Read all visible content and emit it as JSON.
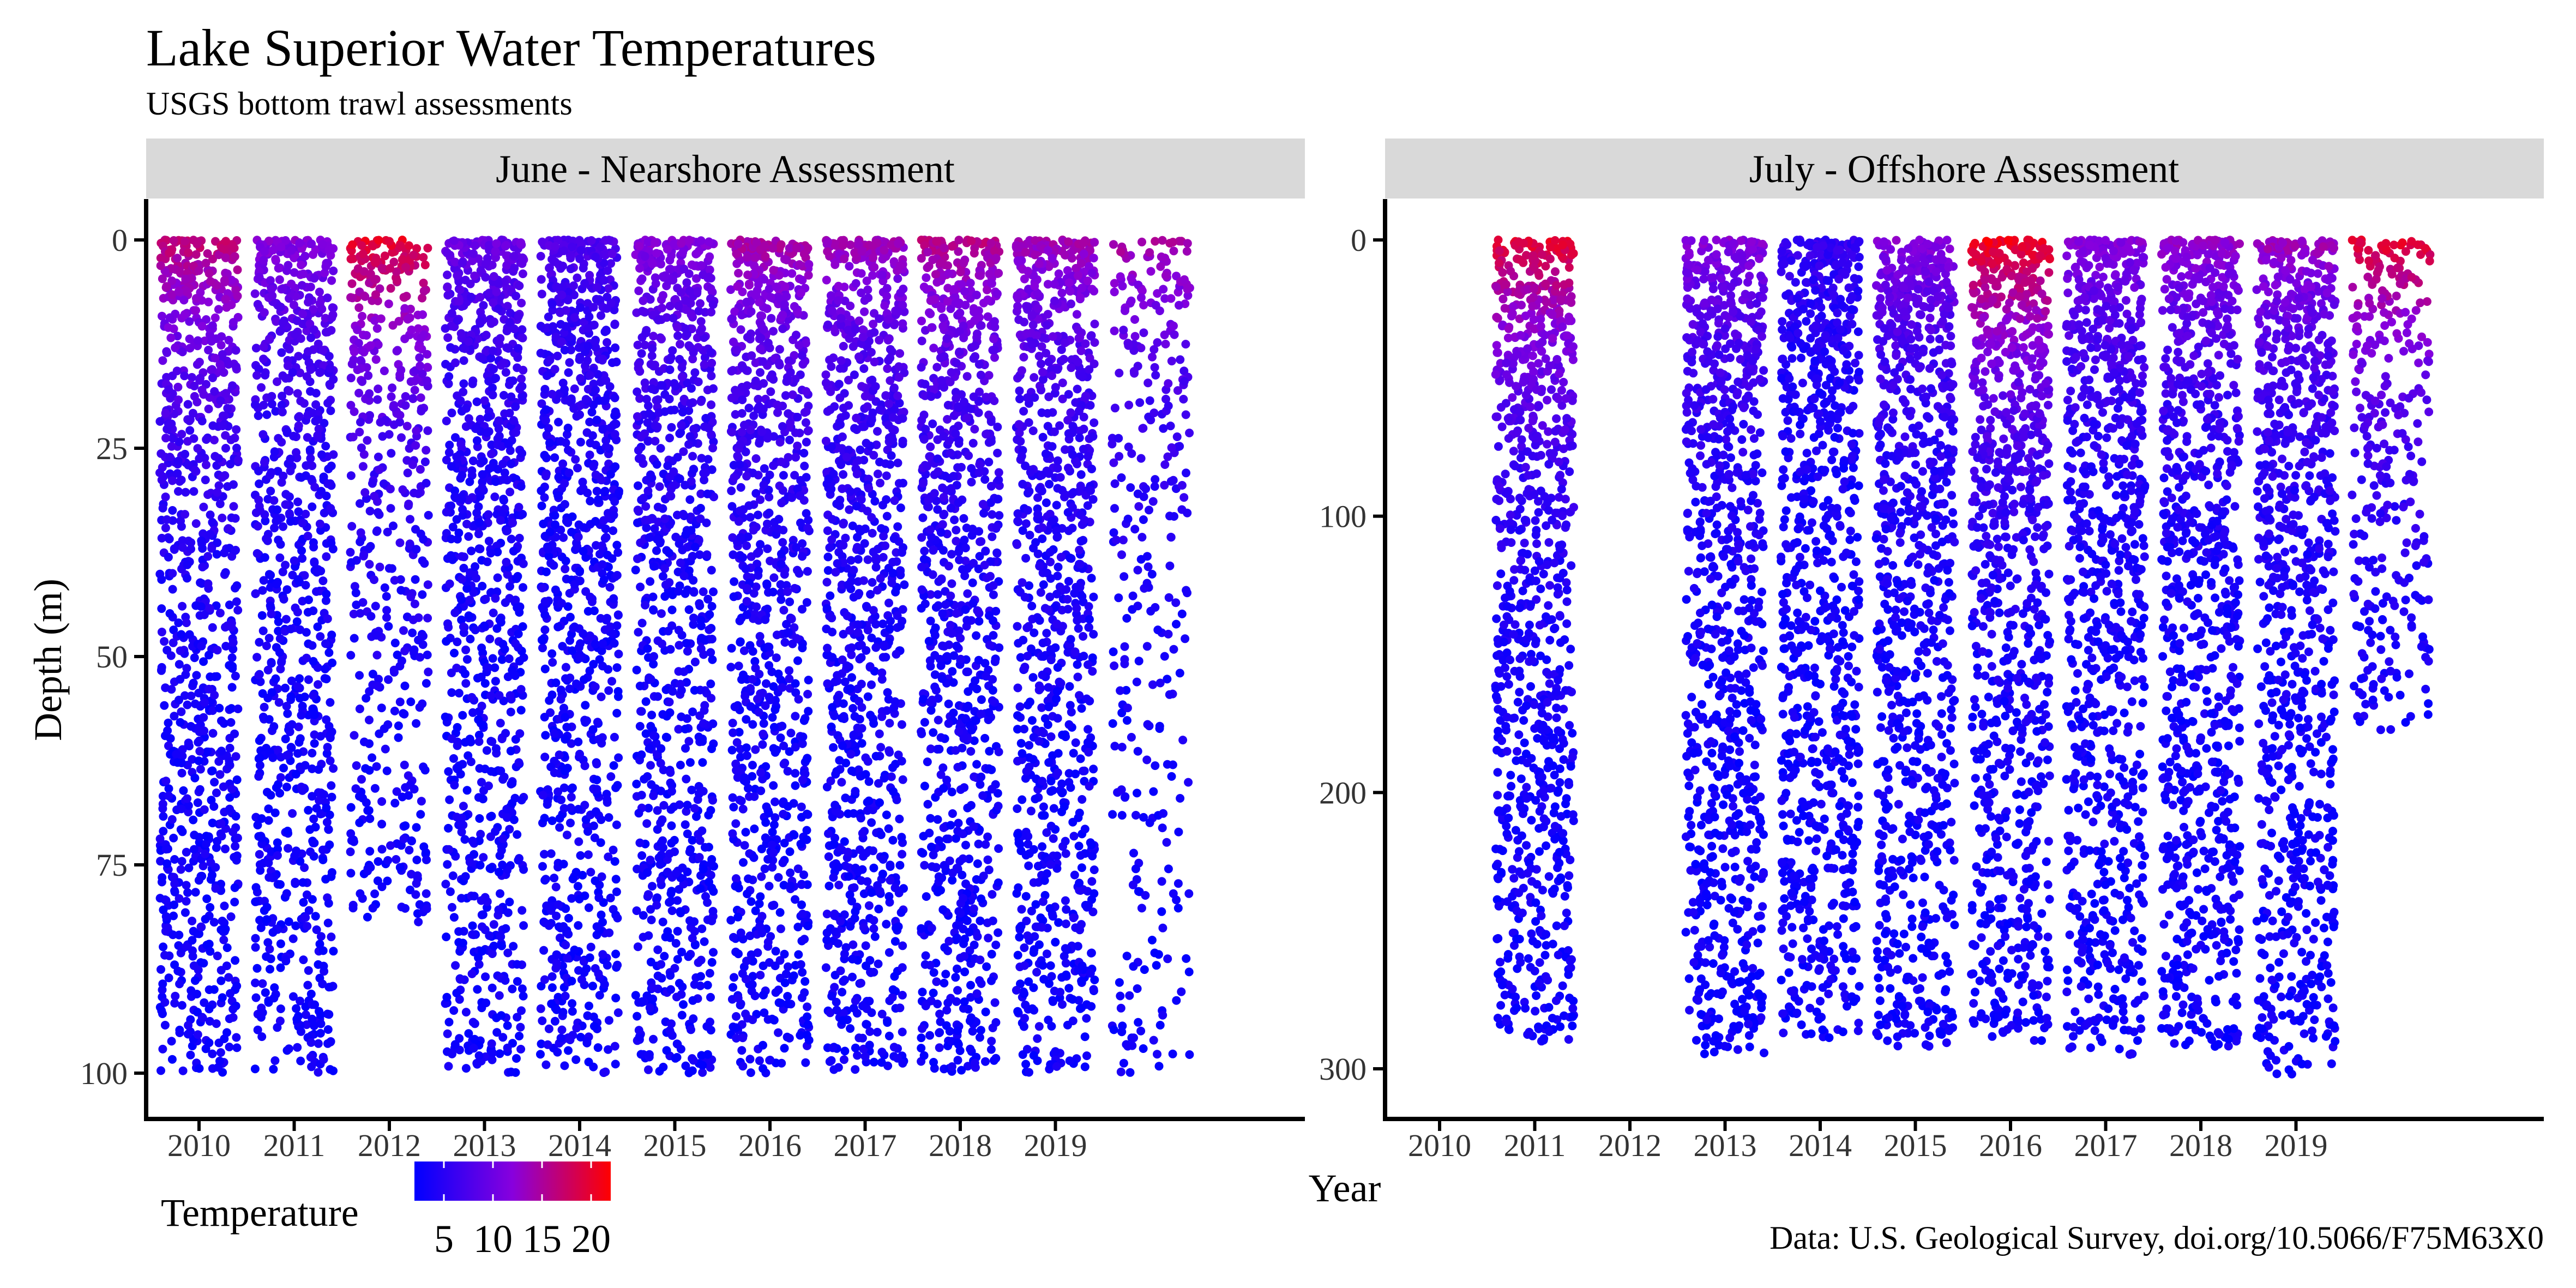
{
  "title": "Lake Superior Water Temperatures",
  "subtitle": "USGS bottom trawl assessments",
  "caption": "Data: U.S. Geological Survey, doi.org/10.5066/F75M63X0",
  "legend": {
    "title": "Temperature",
    "tick_labels": [
      "5",
      "10",
      "15",
      "20"
    ],
    "range": [
      2,
      22
    ],
    "low_color": "#0000ff",
    "mid_color": "#8800dd",
    "high_color": "#ff0000"
  },
  "chart_data": [
    {
      "type": "scatter",
      "panel_title": "June - Nearshore Assessment",
      "xlabel": "Year",
      "ylabel": "Depth (m)",
      "y_reversed": true,
      "ylim": [
        0,
        100
      ],
      "y_ticks": [
        0,
        25,
        50,
        75,
        100
      ],
      "x_tick_labels": [
        "2010",
        "2011",
        "2012",
        "2013",
        "2014",
        "2015",
        "2016",
        "2017",
        "2018",
        "2019"
      ],
      "grid": false,
      "series": [
        {
          "year": "2010",
          "depth_max": 100,
          "surface_temp": 17,
          "density": 1.0
        },
        {
          "year": "2011",
          "depth_max": 100,
          "surface_temp": 12,
          "density": 0.95
        },
        {
          "year": "2012",
          "depth_max": 82,
          "surface_temp": 20,
          "density": 0.55
        },
        {
          "year": "2013",
          "depth_max": 100,
          "surface_temp": 10,
          "density": 1.0
        },
        {
          "year": "2014",
          "depth_max": 100,
          "surface_temp": 8,
          "density": 1.0
        },
        {
          "year": "2015",
          "depth_max": 100,
          "surface_temp": 12,
          "density": 1.0
        },
        {
          "year": "2016",
          "depth_max": 100,
          "surface_temp": 15,
          "density": 1.0
        },
        {
          "year": "2017",
          "depth_max": 100,
          "surface_temp": 14,
          "density": 1.0
        },
        {
          "year": "2018",
          "depth_max": 100,
          "surface_temp": 16,
          "density": 1.0
        },
        {
          "year": "2019",
          "depth_max": 100,
          "surface_temp": 14,
          "density": 1.0
        },
        {
          "year": "",
          "depth_max": 100,
          "surface_temp": 15,
          "density": 0.35
        }
      ]
    },
    {
      "type": "scatter",
      "panel_title": "July - Offshore Assessment",
      "xlabel": "Year",
      "ylabel": "Depth (m)",
      "y_reversed": true,
      "ylim": [
        0,
        300
      ],
      "y_ticks": [
        0,
        100,
        200,
        300
      ],
      "x_tick_labels": [
        "2010",
        "2011",
        "2012",
        "2013",
        "2014",
        "2015",
        "2016",
        "2017",
        "2018",
        "2019"
      ],
      "grid": false,
      "series": [
        {
          "year": "2010",
          "depth_max": 0,
          "surface_temp": 0,
          "density": 0
        },
        {
          "year": "2011",
          "depth_max": 290,
          "surface_temp": 20,
          "density": 1.0
        },
        {
          "year": "2012",
          "depth_max": 0,
          "surface_temp": 0,
          "density": 0
        },
        {
          "year": "2013",
          "depth_max": 295,
          "surface_temp": 12,
          "density": 1.0
        },
        {
          "year": "2014",
          "depth_max": 290,
          "surface_temp": 6,
          "density": 1.0
        },
        {
          "year": "2015",
          "depth_max": 292,
          "surface_temp": 12,
          "density": 1.0
        },
        {
          "year": "2016",
          "depth_max": 290,
          "surface_temp": 21,
          "density": 1.0
        },
        {
          "year": "2017",
          "depth_max": 295,
          "surface_temp": 12,
          "density": 1.0
        },
        {
          "year": "2018",
          "depth_max": 292,
          "surface_temp": 13,
          "density": 1.0
        },
        {
          "year": "2019",
          "depth_max": 302,
          "surface_temp": 14,
          "density": 1.0
        },
        {
          "year": "",
          "depth_max": 180,
          "surface_temp": 20,
          "density": 0.35
        }
      ]
    }
  ]
}
